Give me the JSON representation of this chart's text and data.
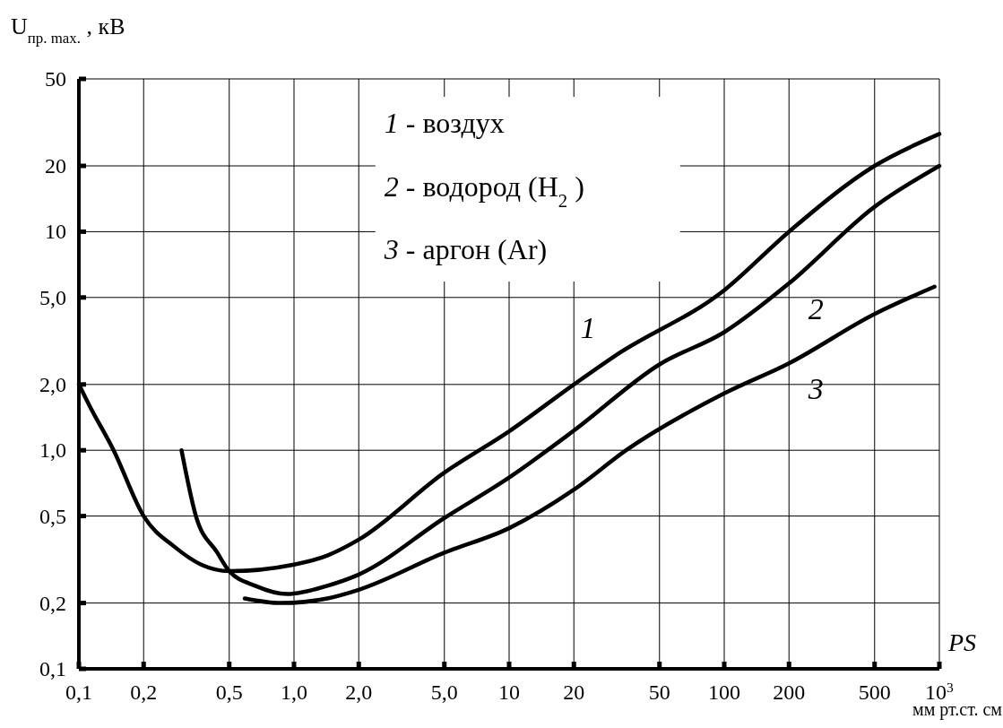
{
  "chart_data": {
    "type": "line",
    "xlabel": "PS",
    "ylabel": "U$_{пр. max.}$, кВ",
    "annotations": [
      "мм рт.ст. см",
      "1 - воздух",
      "2 - водород (H$_{2}$)",
      "3 - аргон (Ar)"
    ],
    "log": "xy",
    "grid": true,
    "marker": "none",
    "line_style": "solid",
    "xlim": [
      0.1,
      1000
    ],
    "ylim": [
      0.1,
      50
    ],
    "xticks": [
      {
        "value": 0.1,
        "label": "0,1"
      },
      {
        "value": 0.2,
        "label": "0,2"
      },
      {
        "value": 0.5,
        "label": "0,5"
      },
      {
        "value": 1,
        "label": "1,0"
      },
      {
        "value": 2,
        "label": "2,0"
      },
      {
        "value": 5,
        "label": "5,0"
      },
      10,
      20,
      50,
      100,
      200,
      500,
      {
        "value": 1000,
        "label": "10$^{3}$"
      }
    ],
    "yticks": [
      {
        "value": 0.1,
        "label": "0,1"
      },
      {
        "value": 0.2,
        "label": "0,2"
      },
      {
        "value": 0.5,
        "label": "0,5"
      },
      {
        "value": 1,
        "label": "1,0"
      },
      {
        "value": 2,
        "label": "2,0"
      },
      {
        "value": 5,
        "label": "5,0"
      },
      10,
      20,
      50
    ],
    "series": [
      {
        "name": "1",
        "color": "#000000",
        "x": [
          0.1,
          0.112,
          0.145,
          0.2,
          0.28,
          0.37,
          0.5,
          1.0,
          1.43,
          2.0,
          5.0,
          10,
          20,
          31,
          100,
          200,
          500,
          1000
        ],
        "values": [
          2.0,
          1.6,
          1.0,
          0.5,
          0.36,
          0.3,
          0.28,
          0.3,
          0.33,
          0.39,
          0.79,
          1.22,
          2.0,
          2.7,
          5.4,
          10,
          20,
          28
        ]
      },
      {
        "name": "2",
        "color": "#000000",
        "x": [
          0.3,
          0.35,
          0.44,
          0.5,
          0.66,
          0.93,
          1.43,
          2.0,
          5.0,
          10,
          20,
          50,
          100,
          200,
          500,
          1000
        ],
        "values": [
          1.0,
          0.5,
          0.34,
          0.28,
          0.24,
          0.22,
          0.24,
          0.27,
          0.49,
          0.75,
          1.23,
          2.47,
          3.47,
          5.8,
          13,
          20
        ]
      },
      {
        "name": "3",
        "color": "#000000",
        "x": [
          0.59,
          0.87,
          1.43,
          2.0,
          5.0,
          10,
          20,
          35,
          100,
          200,
          500,
          950
        ],
        "values": [
          0.21,
          0.2,
          0.21,
          0.23,
          0.34,
          0.44,
          0.66,
          1.0,
          1.82,
          2.5,
          4.2,
          5.6
        ]
      }
    ]
  }
}
